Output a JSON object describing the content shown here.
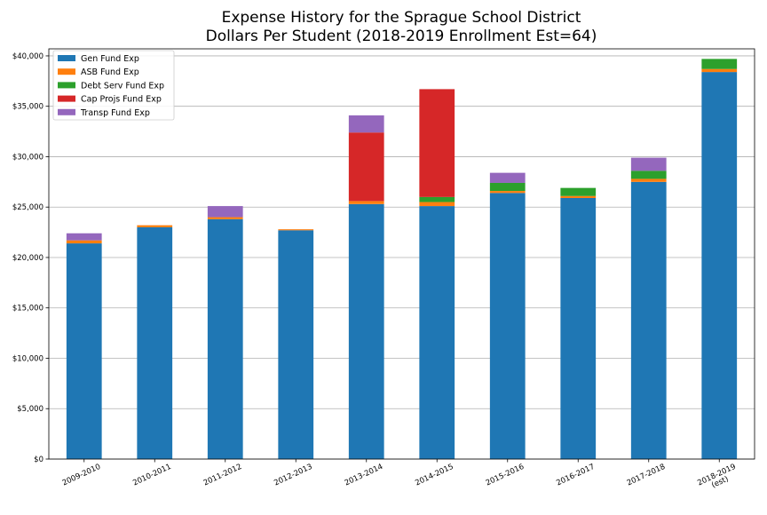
{
  "chart_data": {
    "type": "bar",
    "stacked": true,
    "title_line1": "Expense History for the Sprague School District",
    "title_line2": "Dollars Per Student (2018-2019 Enrollment Est=64)",
    "xlabel": "",
    "ylabel": "",
    "ylim": [
      0,
      40000
    ],
    "yticks": [
      0,
      5000,
      10000,
      15000,
      20000,
      25000,
      30000,
      35000,
      40000
    ],
    "ytick_labels": [
      "$0",
      "$5,000",
      "$10,000",
      "$15,000",
      "$20,000",
      "$25,000",
      "$30,000",
      "$35,000",
      "$40,000"
    ],
    "grid": "horizontal",
    "legend_position": "top-left",
    "categories": [
      "2009-2010",
      "2010-2011",
      "2011-2012",
      "2012-2013",
      "2013-2014",
      "2014-2015",
      "2015-2016",
      "2016-2017",
      "2017-2018",
      "2018-2019 (est)"
    ],
    "category_labels": [
      [
        "2009-2010"
      ],
      [
        "2010-2011"
      ],
      [
        "2011-2012"
      ],
      [
        "2012-2013"
      ],
      [
        "2013-2014"
      ],
      [
        "2014-2015"
      ],
      [
        "2015-2016"
      ],
      [
        "2016-2017"
      ],
      [
        "2017-2018"
      ],
      [
        "2018-2019",
        "(est)"
      ]
    ],
    "series": [
      {
        "name": "Gen Fund Exp",
        "color": "#1f77b4",
        "values": [
          21400,
          23000,
          23800,
          22700,
          25300,
          25100,
          26400,
          25900,
          27500,
          38400
        ]
      },
      {
        "name": "ASB Fund Exp",
        "color": "#ff7f0e",
        "values": [
          300,
          200,
          200,
          100,
          300,
          400,
          200,
          200,
          300,
          300
        ]
      },
      {
        "name": "Debt Serv Fund Exp",
        "color": "#2ca02c",
        "values": [
          0,
          0,
          0,
          0,
          0,
          500,
          800,
          800,
          800,
          1000
        ]
      },
      {
        "name": "Cap Projs Fund Exp",
        "color": "#d62728",
        "values": [
          0,
          0,
          0,
          0,
          6800,
          10700,
          0,
          0,
          0,
          0
        ]
      },
      {
        "name": "Transp Fund Exp",
        "color": "#9467bd",
        "values": [
          700,
          0,
          1100,
          0,
          1700,
          0,
          1000,
          0,
          1300,
          0
        ]
      }
    ]
  }
}
